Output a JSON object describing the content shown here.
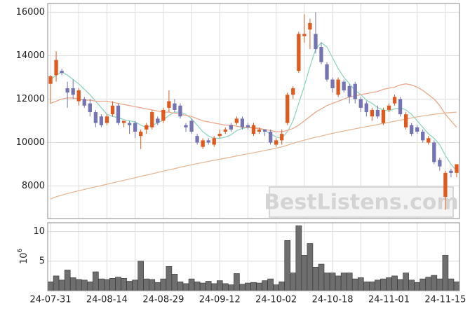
{
  "chart_data": [
    {
      "type": "candlestick",
      "watermark": "BestListens.com",
      "up_color": "#e05a1e",
      "down_color": "#7474b4",
      "ylim": [
        6500,
        16400
      ],
      "yticks": [
        8000,
        10000,
        12000,
        14000,
        16000
      ],
      "grid": true,
      "open": [
        12700,
        13100,
        13300,
        12500,
        12500,
        11900,
        12000,
        11800,
        11400,
        11200,
        10900,
        11300,
        11700,
        10900,
        10900,
        10900,
        10300,
        10600,
        10700,
        11100,
        11000,
        11600,
        11800,
        11700,
        10800,
        11000,
        10300,
        9800,
        10100,
        9900,
        10300,
        10500,
        10800,
        10900,
        11100,
        10800,
        10400,
        10500,
        10600,
        10500,
        9900,
        10100,
        10900,
        12200,
        13300,
        14900,
        15200,
        15000,
        14400,
        13600,
        12900,
        12200,
        12800,
        12600,
        12700,
        12000,
        11800,
        11200,
        11500,
        10900,
        11500,
        11800,
        12000,
        10700,
        10800,
        10700,
        10500,
        10000,
        10000,
        9200,
        7500,
        8700,
        8600
      ],
      "high": [
        13100,
        14200,
        13400,
        12800,
        12900,
        12500,
        12100,
        12000,
        11500,
        11300,
        11300,
        11900,
        11800,
        11000,
        11000,
        11000,
        10600,
        10900,
        11500,
        11200,
        11600,
        12400,
        12000,
        11800,
        10900,
        11100,
        10400,
        10200,
        10200,
        10300,
        10600,
        10700,
        10900,
        11200,
        11200,
        10900,
        10900,
        10700,
        10600,
        10600,
        10200,
        10600,
        12300,
        12600,
        15100,
        15900,
        15700,
        16000,
        14600,
        13700,
        13000,
        13000,
        12900,
        12700,
        12800,
        12100,
        11900,
        11600,
        11700,
        11600,
        11800,
        12200,
        12100,
        11400,
        10900,
        10800,
        10600,
        10300,
        10100,
        9300,
        8700,
        8800,
        9000
      ],
      "low": [
        11800,
        12800,
        13100,
        11600,
        12000,
        11700,
        11600,
        11200,
        10700,
        10700,
        10800,
        11200,
        10800,
        10700,
        10400,
        10200,
        9700,
        10400,
        10600,
        10800,
        10900,
        11400,
        11400,
        11100,
        10500,
        10400,
        9900,
        9700,
        9900,
        9800,
        10200,
        10400,
        10500,
        10800,
        10600,
        10600,
        10300,
        10400,
        10300,
        9900,
        9800,
        9900,
        10800,
        12000,
        13200,
        14600,
        14300,
        14100,
        13600,
        12800,
        12300,
        12100,
        12300,
        11800,
        11800,
        11400,
        11200,
        11000,
        11100,
        10800,
        11400,
        11700,
        11200,
        10600,
        10300,
        10400,
        10000,
        9900,
        9000,
        8700,
        6900,
        8400,
        8400
      ],
      "close": [
        13050,
        13800,
        13200,
        12300,
        12200,
        12400,
        11700,
        11400,
        10900,
        10800,
        11200,
        11700,
        10900,
        11000,
        10800,
        10500,
        10500,
        10800,
        11400,
        10900,
        11500,
        11900,
        11500,
        11200,
        10700,
        10500,
        10000,
        10100,
        10000,
        10200,
        10400,
        10600,
        10600,
        11100,
        10700,
        10700,
        10800,
        10600,
        10500,
        10000,
        10100,
        10400,
        12200,
        12500,
        15000,
        15000,
        15500,
        14300,
        13700,
        12900,
        12500,
        12900,
        12400,
        12100,
        12000,
        11600,
        11400,
        11500,
        11200,
        11500,
        11700,
        12100,
        11300,
        11300,
        10400,
        10500,
        10100,
        10200,
        9100,
        8900,
        8600,
        8600,
        9000
      ],
      "series": [
        {
          "color": "#8fd6c0",
          "values": [
            12900,
            13100,
            13250,
            13100,
            12900,
            12700,
            12450,
            12200,
            11900,
            11600,
            11300,
            11200,
            11150,
            11050,
            11000,
            10950,
            10800,
            10700,
            10800,
            10900,
            11050,
            11250,
            11400,
            11400,
            11300,
            11100,
            10800,
            10500,
            10300,
            10200,
            10200,
            10250,
            10350,
            10550,
            10650,
            10700,
            10700,
            10650,
            10550,
            10400,
            10250,
            10200,
            10500,
            11000,
            11800,
            12600,
            13500,
            14300,
            14600,
            14400,
            13900,
            13400,
            13000,
            12700,
            12400,
            12200,
            11950,
            11800,
            11600,
            11500,
            11450,
            11550,
            11600,
            11500,
            11300,
            11000,
            10700,
            10400,
            10200,
            9900,
            9400,
            9000,
            8700
          ]
        },
        {
          "color": "#eca98c",
          "values": [
            11800,
            11900,
            12000,
            12050,
            12050,
            12000,
            11950,
            11950,
            11900,
            11900,
            11900,
            11850,
            11800,
            11750,
            11700,
            11650,
            11600,
            11550,
            11500,
            11450,
            11400,
            11400,
            11350,
            11300,
            11250,
            11200,
            11100,
            11000,
            10950,
            10900,
            10850,
            10800,
            10800,
            10750,
            10700,
            10700,
            10650,
            10650,
            10600,
            10550,
            10500,
            10500,
            10550,
            10650,
            10800,
            11000,
            11200,
            11400,
            11550,
            11700,
            11800,
            11900,
            12000,
            12100,
            12150,
            12200,
            12250,
            12300,
            12350,
            12450,
            12500,
            12550,
            12650,
            12700,
            12650,
            12550,
            12400,
            12200,
            12000,
            11700,
            11300,
            11000,
            10700
          ]
        },
        {
          "color": "#e8b894",
          "values": [
            7400,
            7500,
            7580,
            7650,
            7720,
            7780,
            7840,
            7900,
            7960,
            8020,
            8080,
            8140,
            8200,
            8260,
            8320,
            8380,
            8440,
            8500,
            8560,
            8620,
            8680,
            8740,
            8800,
            8860,
            8920,
            8980,
            9030,
            9080,
            9130,
            9180,
            9230,
            9280,
            9330,
            9380,
            9430,
            9480,
            9530,
            9580,
            9630,
            9680,
            9740,
            9800,
            9880,
            9960,
            10040,
            10110,
            10180,
            10240,
            10300,
            10360,
            10420,
            10480,
            10530,
            10580,
            10630,
            10680,
            10730,
            10780,
            10830,
            10880,
            10930,
            10980,
            11030,
            11080,
            11130,
            11180,
            11220,
            11260,
            11300,
            11330,
            11360,
            11380,
            11400
          ]
        }
      ]
    },
    {
      "type": "bar",
      "y_label_base": "10",
      "y_label_exponent": "6",
      "color": "#6e6e6e",
      "ylim": [
        0,
        11.5
      ],
      "yticks": [
        5,
        10
      ],
      "grid": true,
      "categories": [
        "24-07-31",
        null,
        null,
        null,
        null,
        null,
        null,
        null,
        null,
        null,
        "24-08-14",
        null,
        null,
        null,
        null,
        null,
        null,
        null,
        null,
        null,
        "24-08-29",
        null,
        null,
        null,
        null,
        null,
        null,
        null,
        null,
        null,
        "24-09-12",
        null,
        null,
        null,
        null,
        null,
        null,
        null,
        null,
        null,
        "24-10-02",
        null,
        null,
        null,
        null,
        null,
        null,
        null,
        null,
        null,
        "24-10-18",
        null,
        null,
        null,
        null,
        null,
        null,
        null,
        null,
        null,
        "24-11-01",
        null,
        null,
        null,
        null,
        null,
        null,
        null,
        null,
        null,
        "24-11-15",
        null,
        null
      ],
      "values": [
        1.5,
        2.5,
        1.8,
        3.5,
        2.2,
        1.9,
        1.8,
        1.5,
        3.2,
        2.0,
        1.9,
        2.1,
        2.3,
        2.1,
        1.6,
        1.8,
        5.0,
        2.0,
        1.9,
        1.4,
        2.0,
        4.1,
        2.8,
        1.5,
        1.2,
        2.0,
        1.5,
        1.3,
        1.6,
        1.2,
        1.7,
        1.2,
        1.0,
        2.9,
        1.1,
        1.3,
        1.4,
        1.3,
        1.7,
        2.0,
        1.0,
        1.5,
        8.5,
        3.0,
        11.0,
        6.0,
        8.0,
        4.0,
        4.5,
        3.0,
        3.0,
        2.5,
        3.0,
        3.0,
        2.0,
        2.2,
        1.5,
        1.5,
        1.8,
        2.0,
        2.2,
        2.5,
        1.9,
        3.0,
        1.8,
        1.4,
        2.0,
        2.3,
        2.6,
        2.0,
        6.0,
        2.0,
        1.5
      ]
    }
  ]
}
